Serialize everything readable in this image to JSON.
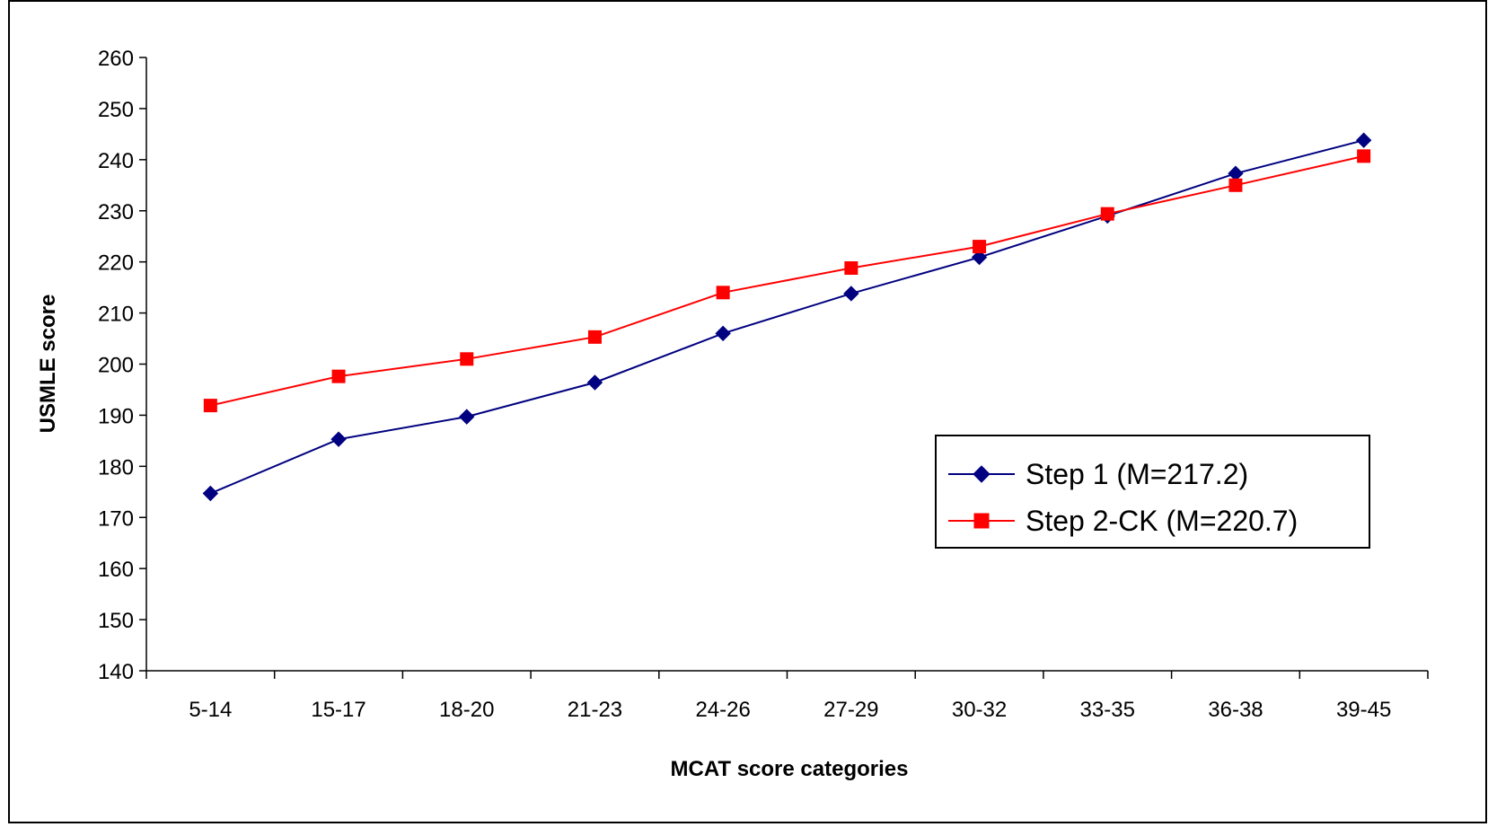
{
  "chart_data": {
    "type": "line",
    "title": "",
    "xlabel": "MCAT score categories",
    "ylabel": "USMLE score",
    "categories": [
      "5-14",
      "15-17",
      "18-20",
      "21-23",
      "24-26",
      "27-29",
      "30-32",
      "33-35",
      "36-38",
      "39-45"
    ],
    "ylim": [
      140,
      260
    ],
    "yticks": [
      140,
      150,
      160,
      170,
      180,
      190,
      200,
      210,
      220,
      230,
      240,
      250,
      260
    ],
    "grid": false,
    "legend_position": "right",
    "series": [
      {
        "name": "Step 1 (M=217.2)",
        "color": "#000080",
        "marker": "diamond",
        "values": [
          174.7,
          185.3,
          189.7,
          196.4,
          206.0,
          213.8,
          220.9,
          229.0,
          237.3,
          243.8
        ]
      },
      {
        "name": "Step 2-CK (M=220.7)",
        "color": "#ff0000",
        "marker": "square",
        "values": [
          191.9,
          197.6,
          201.0,
          205.3,
          214.0,
          218.8,
          223.0,
          229.4,
          235.0,
          240.7
        ]
      }
    ]
  }
}
